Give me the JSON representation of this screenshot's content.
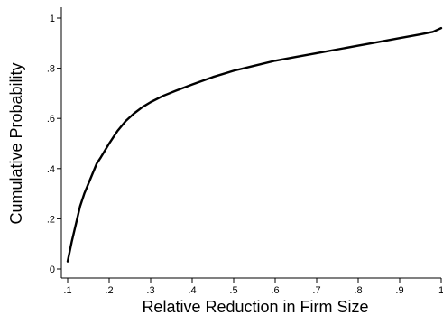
{
  "chart_data": {
    "type": "line",
    "title": "",
    "xlabel": "Relative Reduction in Firm Size",
    "ylabel": "Cumulative Probability",
    "xlim": [
      0.1,
      1.0
    ],
    "ylim": [
      0,
      1
    ],
    "xticks": [
      0.1,
      0.2,
      0.3,
      0.4,
      0.5,
      0.6,
      0.7,
      0.8,
      0.9,
      1.0
    ],
    "xtick_labels": [
      ".1",
      ".2",
      ".3",
      ".4",
      ".5",
      ".6",
      ".7",
      ".8",
      ".9",
      "1"
    ],
    "yticks": [
      0,
      0.2,
      0.4,
      0.6,
      0.8,
      1.0
    ],
    "ytick_labels": [
      "0",
      ".2",
      ".4",
      ".6",
      ".8",
      "1"
    ],
    "grid": false,
    "legend": "none",
    "line_color": "#000000",
    "series": [
      {
        "x": [
          0.1,
          0.11,
          0.12,
          0.13,
          0.14,
          0.15,
          0.16,
          0.17,
          0.18,
          0.2,
          0.22,
          0.24,
          0.26,
          0.28,
          0.3,
          0.33,
          0.36,
          0.4,
          0.45,
          0.5,
          0.55,
          0.6,
          0.65,
          0.7,
          0.75,
          0.8,
          0.85,
          0.9,
          0.95,
          0.98,
          1.0
        ],
        "y": [
          0.03,
          0.11,
          0.18,
          0.25,
          0.3,
          0.34,
          0.38,
          0.42,
          0.445,
          0.5,
          0.55,
          0.59,
          0.62,
          0.645,
          0.665,
          0.69,
          0.71,
          0.735,
          0.765,
          0.79,
          0.81,
          0.83,
          0.845,
          0.86,
          0.875,
          0.89,
          0.905,
          0.92,
          0.935,
          0.945,
          0.96
        ]
      }
    ]
  }
}
